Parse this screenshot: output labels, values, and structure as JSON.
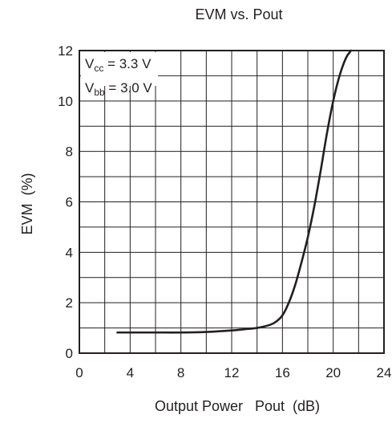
{
  "chart_data": {
    "type": "line",
    "title": "EVM vs. Pout",
    "xlabel": "Output Power   Pout  (dB)",
    "ylabel": "EVM  (%)",
    "xlim": [
      0,
      24
    ],
    "ylim": [
      0,
      12
    ],
    "x_ticks": [
      "0",
      "4",
      "8",
      "12",
      "16",
      "20",
      "24"
    ],
    "y_ticks": [
      "0",
      "2",
      "4",
      "6",
      "8",
      "10",
      "12"
    ],
    "grid": true,
    "annotation": {
      "line1": {
        "main": "V",
        "sub": "cc",
        "rest": " = 3.3 V"
      },
      "line2": {
        "main": "V",
        "sub": "bb",
        "rest": " = 3.0 V"
      }
    },
    "series": [
      {
        "x": [
          3,
          4,
          6,
          8,
          10,
          12,
          13,
          14,
          15,
          15.5,
          16,
          16.5,
          17,
          17.5,
          18,
          18.5,
          19,
          19.5,
          20,
          20.5,
          21,
          21.4
        ],
        "y": [
          0.82,
          0.82,
          0.82,
          0.82,
          0.84,
          0.9,
          0.95,
          1.0,
          1.12,
          1.25,
          1.5,
          2.0,
          2.7,
          3.6,
          4.6,
          5.8,
          7.2,
          8.7,
          10.0,
          11.0,
          11.7,
          12.0
        ]
      }
    ]
  }
}
